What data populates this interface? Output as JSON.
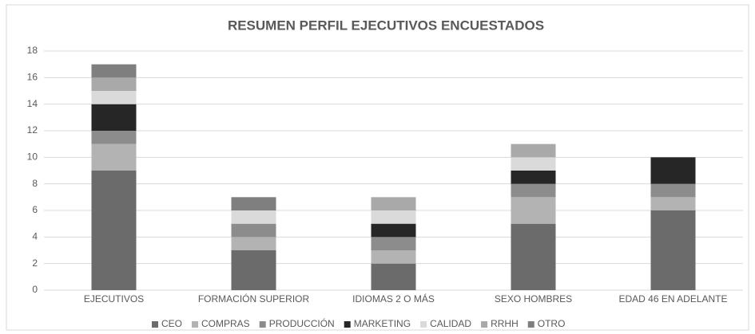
{
  "chart_data": {
    "type": "stacked_bar",
    "title": "RESUMEN PERFIL EJECUTIVOS ENCUESTADOS",
    "categories": [
      "EJECUTIVOS",
      "FORMACIÓN SUPERIOR",
      "IDIOMAS 2 O MÁS",
      "SEXO HOMBRES",
      "EDAD 46 EN ADELANTE"
    ],
    "series": [
      {
        "name": "CEO",
        "color": "#6b6b6b",
        "values": [
          9,
          3,
          2,
          5,
          6
        ]
      },
      {
        "name": "COMPRAS",
        "color": "#b3b3b3",
        "values": [
          2,
          1,
          1,
          2,
          1
        ]
      },
      {
        "name": "PRODUCCIÓN",
        "color": "#8c8c8c",
        "values": [
          1,
          1,
          1,
          1,
          1
        ]
      },
      {
        "name": "MARKETING",
        "color": "#262626",
        "values": [
          2,
          0,
          1,
          1,
          2
        ]
      },
      {
        "name": "CALIDAD",
        "color": "#dadada",
        "values": [
          1,
          1,
          1,
          1,
          0
        ]
      },
      {
        "name": "RRHH",
        "color": "#a9a9a9",
        "values": [
          1,
          0,
          1,
          1,
          0
        ]
      },
      {
        "name": "OTRO",
        "color": "#7f7f7f",
        "values": [
          1,
          1,
          0,
          0,
          0
        ]
      }
    ],
    "ylim": [
      0,
      18
    ],
    "yticks": [
      0,
      2,
      4,
      6,
      8,
      10,
      12,
      14,
      16,
      18
    ],
    "grid": true,
    "legend": "bottom"
  }
}
